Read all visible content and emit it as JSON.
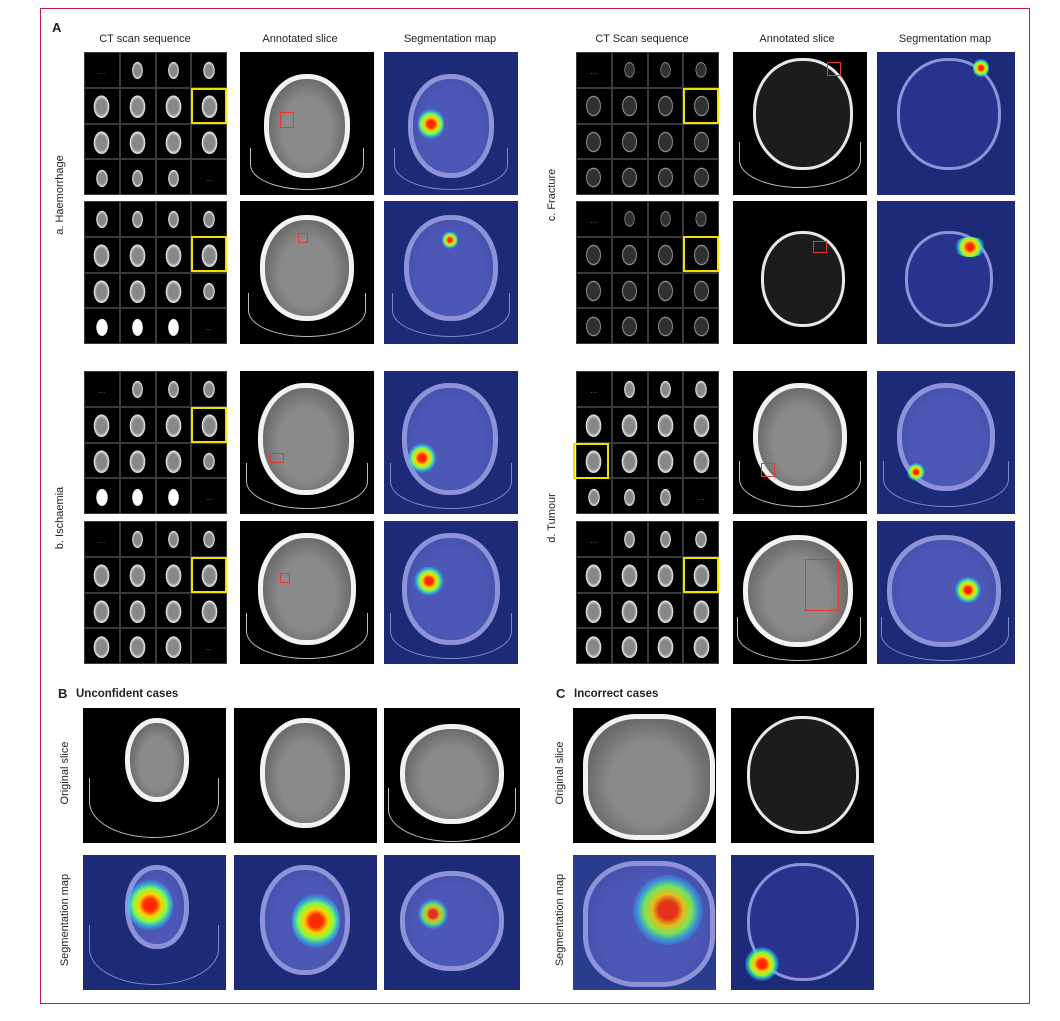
{
  "panel_A": {
    "letter": "A",
    "left_headers": {
      "col1": "CT scan sequence",
      "col2": "Annotated slice",
      "col3": "Segmentation map"
    },
    "right_headers": {
      "col1": "CT Scan sequence",
      "col2": "Annotated slice",
      "col3": "Segmentation map"
    },
    "row_labels": {
      "a": "a. Haemorrhage",
      "b": "b. Ischaemia",
      "c": "c. Fracture",
      "d": "d. Tumour"
    },
    "grid_dots": "..."
  },
  "panel_B": {
    "letter": "B",
    "title": "Unconfident cases"
  },
  "panel_C": {
    "letter": "C",
    "title": "Incorrect cases"
  },
  "row_labels_bottom": {
    "original": "Original slice",
    "segmentation": "Segmentation map"
  },
  "colors": {
    "frame": "#c2185b",
    "highlight": "#f0e000",
    "annotation_box": "#e53935"
  }
}
